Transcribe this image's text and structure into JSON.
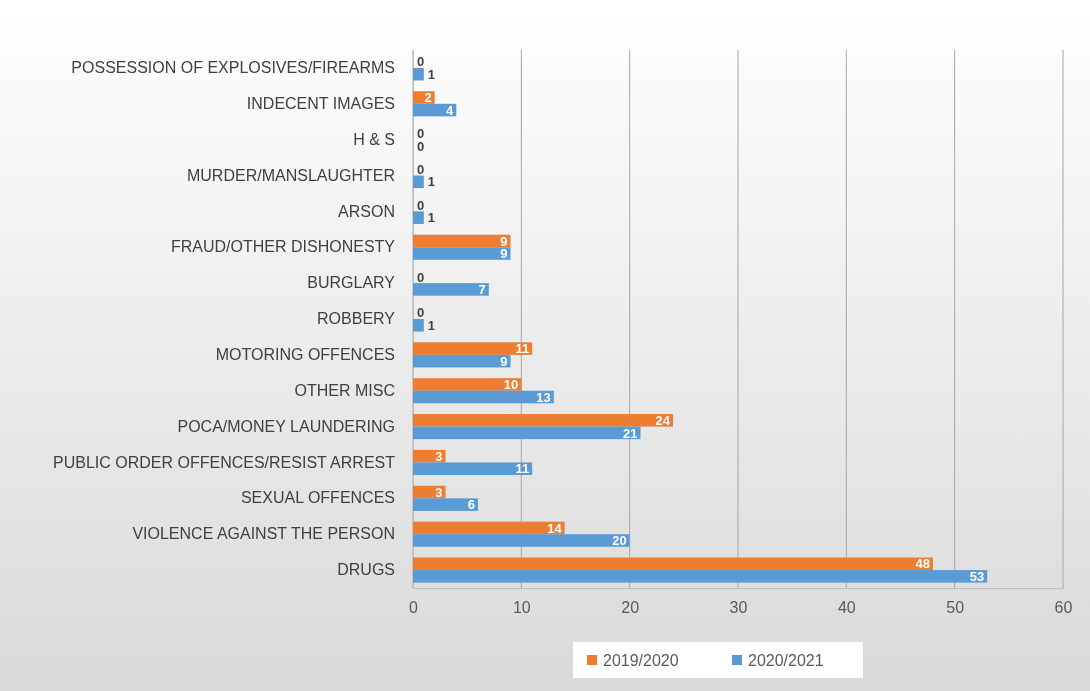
{
  "chart_data": {
    "type": "bar",
    "orientation": "horizontal",
    "categories": [
      "POSSESSION OF EXPLOSIVES/FIREARMS",
      "INDECENT IMAGES",
      "H & S",
      "MURDER/MANSLAUGHTER",
      "ARSON",
      "FRAUD/OTHER DISHONESTY",
      "BURGLARY",
      "ROBBERY",
      "MOTORING OFFENCES",
      "OTHER MISC",
      "POCA/MONEY LAUNDERING",
      "PUBLIC ORDER OFFENCES/RESIST ARREST",
      "SEXUAL OFFENCES",
      "VIOLENCE AGAINST THE PERSON",
      "DRUGS"
    ],
    "series": [
      {
        "name": "2019/2020",
        "color": "#ed7d31",
        "values": [
          0,
          2,
          0,
          0,
          0,
          9,
          0,
          0,
          11,
          10,
          24,
          3,
          3,
          14,
          48
        ]
      },
      {
        "name": "2020/2021",
        "color": "#5b9bd5",
        "values": [
          1,
          4,
          0,
          1,
          1,
          9,
          7,
          1,
          9,
          13,
          21,
          11,
          6,
          20,
          53
        ]
      }
    ],
    "xlim": [
      0,
      60
    ],
    "xticks": [
      0,
      10,
      20,
      30,
      40,
      50,
      60
    ],
    "grid": "x",
    "legend": "bottom",
    "data_labels": true
  }
}
